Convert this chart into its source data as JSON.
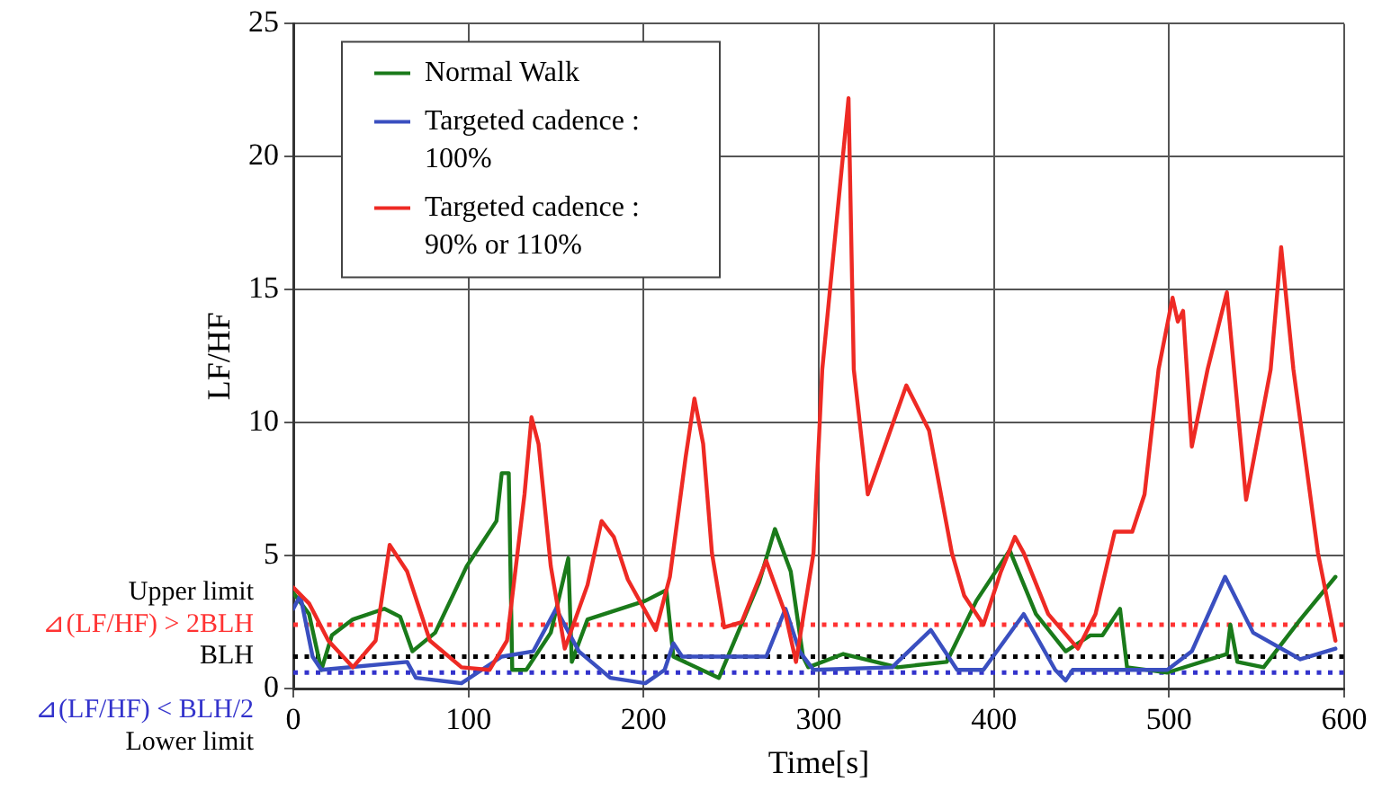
{
  "chart_data": {
    "type": "line",
    "xlabel": "Time[s]",
    "ylabel": "LF/HF",
    "xlim": [
      0,
      600
    ],
    "xticks": [
      0,
      100,
      200,
      300,
      400,
      500,
      600
    ],
    "ylim": [
      0,
      25
    ],
    "yticks": [
      0,
      5,
      10,
      15,
      20,
      25
    ],
    "grid": true,
    "legend": "top left",
    "marker": "none",
    "line_style": "solid",
    "series": [
      {
        "name": "Normal Walk",
        "color": "#1a7a1a",
        "x": [
          0,
          9,
          16,
          22,
          34,
          52,
          61,
          68,
          81,
          99,
          106,
          116,
          119,
          123,
          125,
          133,
          147,
          157,
          159,
          168,
          201,
          213,
          217,
          243,
          266,
          275,
          284,
          291,
          294,
          314,
          345,
          373,
          390,
          409,
          424,
          441,
          455,
          462,
          472,
          476,
          499,
          533,
          535,
          539,
          554,
          575,
          595
        ],
        "values": [
          3.6,
          2.8,
          0.7,
          2.0,
          2.6,
          3.0,
          2.7,
          1.4,
          2.1,
          4.6,
          5.3,
          6.3,
          8.1,
          8.1,
          0.7,
          0.7,
          2.1,
          4.9,
          1.0,
          2.6,
          3.3,
          3.7,
          1.2,
          0.4,
          4.0,
          6.0,
          4.4,
          1.2,
          0.8,
          1.3,
          0.8,
          1.0,
          3.3,
          5.2,
          2.8,
          1.4,
          2.0,
          2.0,
          3.0,
          0.8,
          0.6,
          1.3,
          2.4,
          1.0,
          0.8,
          2.6,
          4.2
        ]
      },
      {
        "name": "Targeted cadence : 100%",
        "color": "#3a4fc0",
        "x": [
          0,
          4,
          11,
          16,
          65,
          70,
          96,
          119,
          137,
          150,
          163,
          181,
          201,
          212,
          217,
          222,
          270,
          281,
          289,
          297,
          342,
          345,
          364,
          379,
          394,
          417,
          435,
          441,
          445,
          499,
          513,
          532,
          548,
          575,
          595
        ],
        "values": [
          3.0,
          3.5,
          1.2,
          0.7,
          1.0,
          0.4,
          0.2,
          1.2,
          1.4,
          3.0,
          1.4,
          0.4,
          0.2,
          0.7,
          1.7,
          1.2,
          1.2,
          3.0,
          1.4,
          0.7,
          0.8,
          1.0,
          2.2,
          0.7,
          0.7,
          2.8,
          0.7,
          0.3,
          0.7,
          0.7,
          1.4,
          4.2,
          2.1,
          1.1,
          1.5
        ]
      },
      {
        "name": "Targeted cadence : 90% or 110%",
        "color": "#ee2a24",
        "x": [
          0,
          9,
          20,
          34,
          47,
          55,
          65,
          78,
          96,
          112,
          122,
          132,
          136,
          140,
          147,
          155,
          168,
          176,
          183,
          191,
          207,
          215,
          224,
          229,
          234,
          239,
          246,
          256,
          270,
          281,
          287,
          297,
          302,
          317,
          320,
          328,
          350,
          363,
          376,
          383,
          394,
          404,
          412,
          417,
          431,
          448,
          458,
          469,
          479,
          486,
          494,
          502,
          505,
          508,
          513,
          522,
          533,
          544,
          558,
          564,
          571,
          585,
          595
        ],
        "values": [
          3.8,
          3.2,
          1.8,
          0.8,
          1.8,
          5.4,
          4.4,
          1.8,
          0.8,
          0.7,
          1.8,
          7.3,
          10.2,
          9.2,
          4.6,
          1.5,
          3.9,
          6.3,
          5.7,
          4.1,
          2.2,
          4.2,
          8.7,
          10.9,
          9.2,
          5.1,
          2.3,
          2.5,
          4.8,
          2.8,
          1.0,
          5.1,
          12,
          22.2,
          12,
          7.3,
          11.4,
          9.7,
          5.1,
          3.5,
          2.4,
          4.4,
          5.7,
          5.1,
          2.8,
          1.5,
          2.8,
          5.9,
          5.9,
          7.3,
          12,
          14.7,
          13.8,
          14.2,
          9.1,
          12,
          14.9,
          7.1,
          12,
          16.6,
          12,
          5.1,
          1.8
        ]
      }
    ],
    "ref_lines": [
      {
        "axis": "y",
        "value": 2.4,
        "label": "⊿(LF/HF) > 2BLH",
        "color": "#ff3333",
        "line_style": "dotted"
      },
      {
        "axis": "y",
        "value": 1.2,
        "label": "BLH",
        "color": "#000000",
        "line_style": "dotted"
      },
      {
        "axis": "y",
        "value": 0.6,
        "label": "⊿(LF/HF) < BLH/2",
        "color": "#3333cc",
        "line_style": "dotted"
      }
    ],
    "annotations": [
      "Upper limit",
      "Lower limit"
    ]
  }
}
